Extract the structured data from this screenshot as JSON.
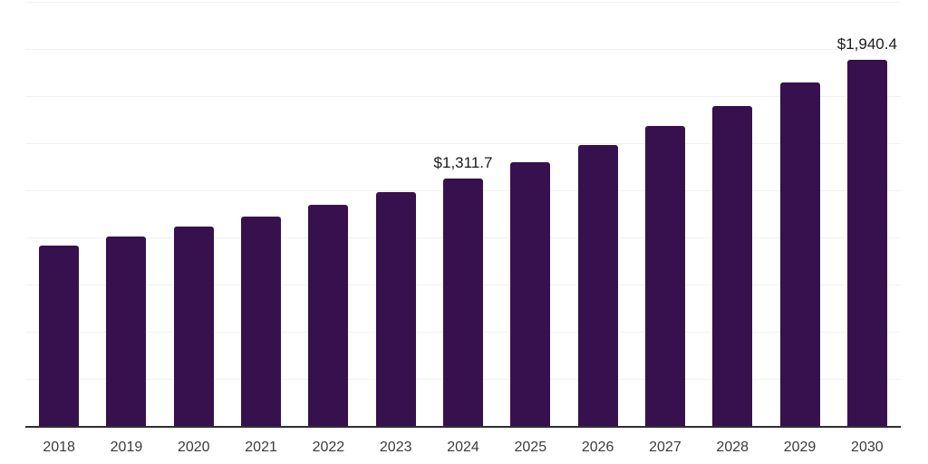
{
  "chart": {
    "background_color": "#ffffff",
    "bar_color": "#36114e",
    "gridline_color": "#f1f1f1",
    "axis_line_color": "#2e2e34",
    "x_label_color": "#3b3b3b",
    "data_label_color": "#1a1a1a"
  },
  "chart_data": {
    "type": "bar",
    "title": "",
    "xlabel": "",
    "ylabel": "",
    "categories": [
      "2018",
      "2019",
      "2020",
      "2021",
      "2022",
      "2023",
      "2024",
      "2025",
      "2026",
      "2027",
      "2028",
      "2029",
      "2030"
    ],
    "values": [
      958.2,
      1006.5,
      1058.1,
      1113.0,
      1172.4,
      1242.5,
      1311.7,
      1397.5,
      1488.6,
      1592.8,
      1695.0,
      1820.3,
      1940.4
    ],
    "ylim": [
      0,
      2250
    ],
    "grid_step": 250,
    "grid": true,
    "legend": "none",
    "y_axis_ticks_visible": false,
    "data_labels": [
      {
        "index": 6,
        "text": "$1,311.7"
      },
      {
        "index": 12,
        "text": "$1,940.4"
      }
    ]
  }
}
